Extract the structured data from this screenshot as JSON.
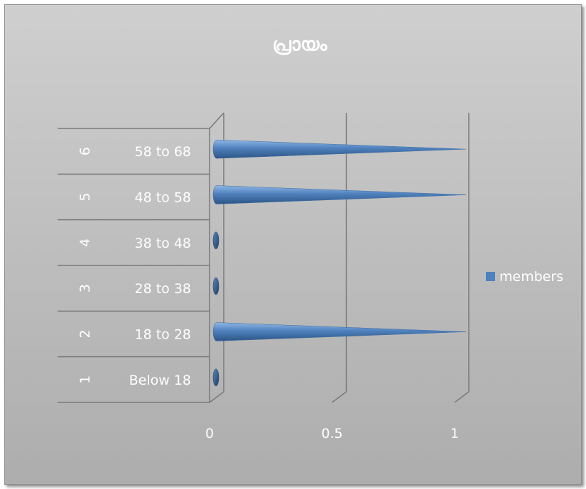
{
  "chart_data": {
    "type": "bar",
    "orientation": "horizontal",
    "style": "3d-cone",
    "title": "പ്രായം",
    "categories_outer": [
      "1",
      "2",
      "3",
      "4",
      "5",
      "6"
    ],
    "categories": [
      "Below 18",
      "18 to 28",
      "28 to 38",
      "38 to 48",
      "48 to 58",
      "58 to 68"
    ],
    "series": [
      {
        "name": "members",
        "color": "#4f81bd",
        "values": [
          0,
          1,
          0,
          0,
          1,
          1
        ]
      }
    ],
    "xlim": [
      0,
      1
    ],
    "xticks": [
      "0",
      "0.5",
      "1"
    ],
    "grid": true,
    "legend": "right"
  }
}
